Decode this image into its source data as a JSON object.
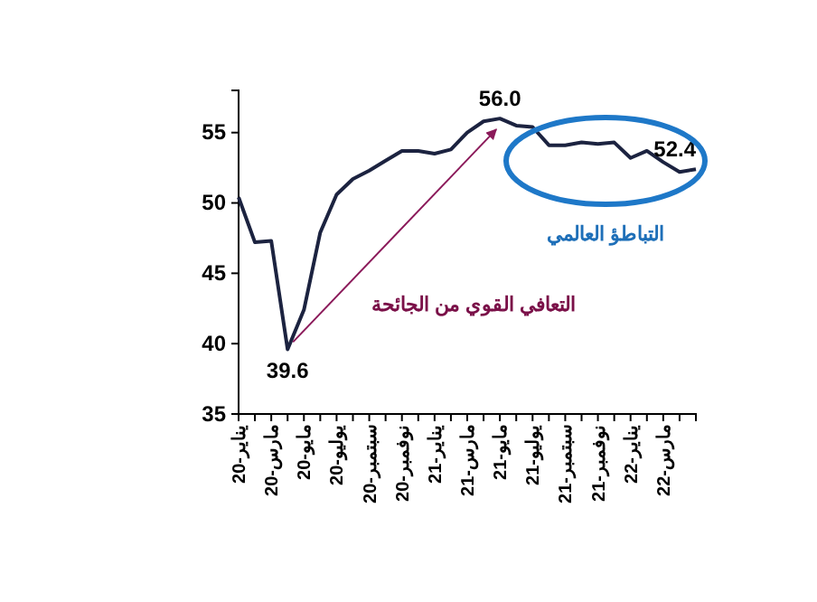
{
  "chart_data": {
    "type": "line",
    "categories": [
      "يناير-20",
      null,
      "مارس-20",
      null,
      "مايو-20",
      null,
      "يوليو-20",
      null,
      "سبتمبر-20",
      null,
      "نوفمبر-20",
      null,
      "يناير-21",
      null,
      "مارس-21",
      null,
      "مايو-21",
      null,
      "يوليو-21",
      null,
      "سبتمبر-21",
      null,
      "نوفمبر-21",
      null,
      "يناير-22",
      null,
      "مارس-22",
      null,
      null
    ],
    "series": [
      {
        "color": "#1c2340",
        "values": [
          50.4,
          47.2,
          47.3,
          39.6,
          42.4,
          47.9,
          50.6,
          51.7,
          52.3,
          53.0,
          53.7,
          53.7,
          53.5,
          53.8,
          55.0,
          55.8,
          56.0,
          55.5,
          55.4,
          54.1,
          54.1,
          54.3,
          54.2,
          54.3,
          53.2,
          53.7,
          52.9,
          52.2,
          52.4
        ],
        "value_labels": [
          null,
          null,
          null,
          "39.6",
          null,
          null,
          null,
          null,
          null,
          null,
          null,
          null,
          null,
          null,
          null,
          null,
          "56.0",
          null,
          null,
          null,
          null,
          null,
          null,
          null,
          null,
          null,
          null,
          null,
          "52.4"
        ]
      }
    ],
    "ylim": [
      35,
      58
    ],
    "yticks": [
      35,
      40,
      45,
      50,
      55
    ],
    "grid": false,
    "annotations": [
      "التعافي القوي من الجائحة",
      "التباطؤ العالمي"
    ]
  }
}
